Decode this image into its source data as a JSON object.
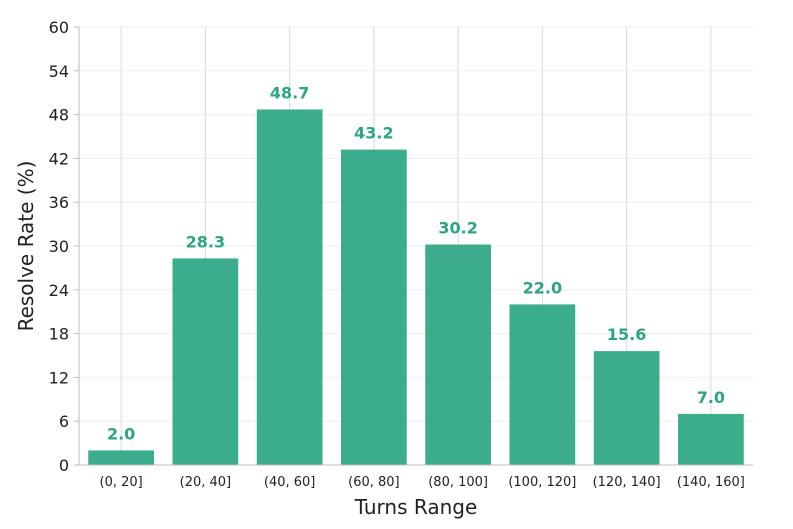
{
  "chart_data": {
    "type": "bar",
    "title": "",
    "xlabel": "Turns Range",
    "ylabel": "Resolve Rate (%)",
    "categories": [
      "(0, 20]",
      "(20, 40]",
      "(40, 60]",
      "(60, 80]",
      "(80, 100]",
      "(100, 120]",
      "(120, 140]",
      "(140, 160]"
    ],
    "values": [
      2.0,
      28.3,
      48.7,
      43.2,
      30.2,
      22.0,
      15.6,
      7.0
    ],
    "data_labels": [
      "2.0",
      "28.3",
      "48.7",
      "43.2",
      "30.2",
      "22.0",
      "15.6",
      "7.0"
    ],
    "ylim": [
      0,
      60
    ],
    "yticks": [
      0,
      6,
      12,
      18,
      24,
      30,
      36,
      42,
      48,
      54,
      60
    ],
    "grid": true,
    "legend": "none",
    "colors": {
      "bar": "#2aa682",
      "label": "#2aa682",
      "grid": "#d9d9d9",
      "axis": "#bfbfbf"
    }
  }
}
